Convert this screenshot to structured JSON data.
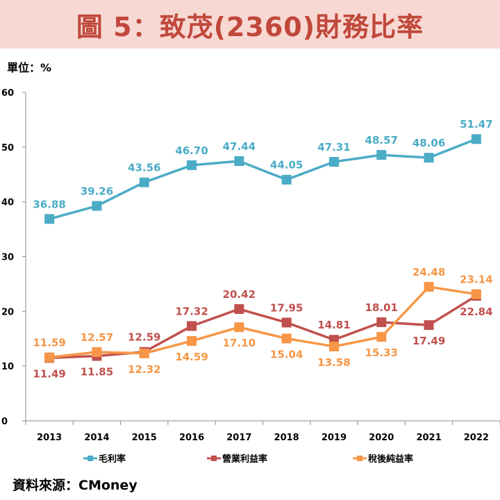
{
  "header": {
    "title": "圖 5：致茂(2360)財務比率",
    "unit": "單位：%",
    "source": "資料來源：CMoney"
  },
  "colors": {
    "banner_bg": "#f8d8d3",
    "title": "#c0483b"
  },
  "chart_data": {
    "type": "line",
    "title": "圖 5：致茂(2360)財務比率",
    "xlabel": "",
    "ylabel": "單位：%",
    "ylim": [
      0,
      60
    ],
    "yticks": [
      0,
      10,
      20,
      30,
      40,
      50,
      60
    ],
    "categories": [
      "2013",
      "2014",
      "2015",
      "2016",
      "2017",
      "2018",
      "2019",
      "2020",
      "2021",
      "2022"
    ],
    "legend_position": "bottom",
    "series": [
      {
        "name": "毛利率",
        "color": "#4bacc6",
        "values": [
          36.88,
          39.26,
          43.56,
          46.7,
          47.44,
          44.05,
          47.31,
          48.57,
          48.06,
          51.47
        ],
        "labels": [
          "36.88",
          "39.26",
          "43.56",
          "46.70",
          "47.44",
          "44.05",
          "47.31",
          "48.57",
          "48.06",
          "51.47"
        ],
        "label_pos": [
          "above",
          "above",
          "above",
          "above",
          "above",
          "above",
          "above",
          "above",
          "above",
          "above"
        ]
      },
      {
        "name": "營業利益率",
        "color": "#c0504d",
        "values": [
          11.49,
          11.85,
          12.59,
          17.32,
          20.42,
          17.95,
          14.81,
          18.01,
          17.49,
          22.84
        ],
        "labels": [
          "11.49",
          "11.85",
          "12.59",
          "17.32",
          "20.42",
          "17.95",
          "14.81",
          "18.01",
          "17.49",
          "22.84"
        ],
        "label_pos": [
          "below",
          "below",
          "above",
          "above",
          "above",
          "above",
          "above",
          "above",
          "below",
          "below"
        ]
      },
      {
        "name": "稅後純益率",
        "color": "#f79646",
        "values": [
          11.59,
          12.57,
          12.32,
          14.59,
          17.1,
          15.04,
          13.58,
          15.33,
          24.48,
          23.14
        ],
        "labels": [
          "11.59",
          "12.57",
          "12.32",
          "14.59",
          "17.10",
          "15.04",
          "13.58",
          "15.33",
          "24.48",
          "23.14"
        ],
        "label_pos": [
          "above",
          "above",
          "below",
          "below",
          "below",
          "below",
          "below",
          "below",
          "above",
          "above"
        ]
      }
    ]
  }
}
